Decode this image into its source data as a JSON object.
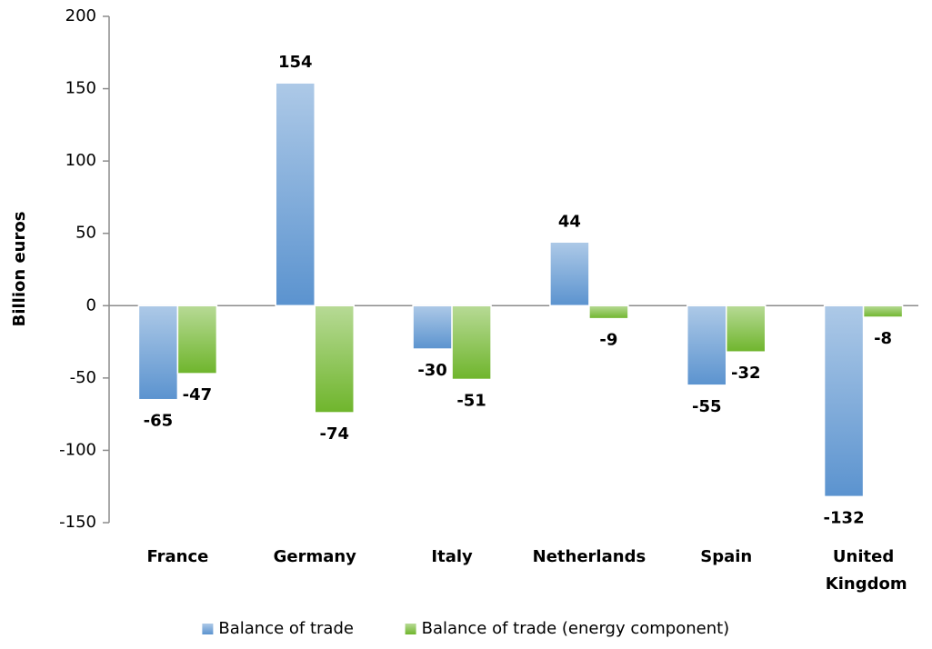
{
  "chart_data": {
    "type": "bar",
    "categories": [
      "France",
      "Germany",
      "Italy",
      "Netherlands",
      "Spain",
      "United Kingdom"
    ],
    "series": [
      {
        "name": "Balance of trade",
        "color": "#5b93cf",
        "values": [
          -65,
          154,
          -30,
          44,
          -55,
          -132
        ]
      },
      {
        "name": "Balance of trade (energy component)",
        "color": "#6fb52c",
        "values": [
          -47,
          -74,
          -51,
          -9,
          -32,
          -8
        ]
      }
    ],
    "y_label": "Billion euros",
    "ylim": [
      -150,
      200
    ],
    "yticks": [
      -150,
      -100,
      -50,
      0,
      50,
      100,
      150,
      200
    ],
    "grid": false,
    "legend": "bottom"
  }
}
